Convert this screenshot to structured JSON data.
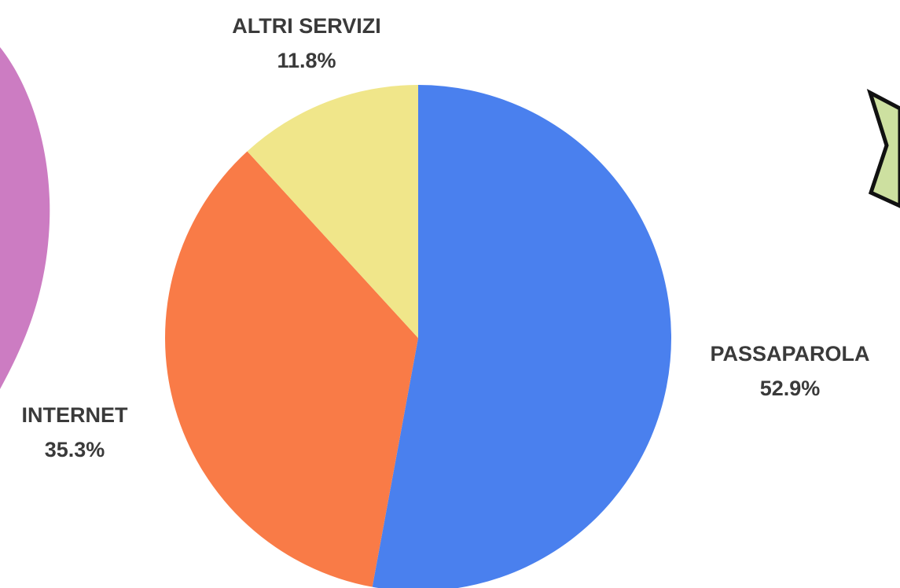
{
  "chart_data": {
    "type": "pie",
    "categories": [
      "PASSAPAROLA",
      "INTERNET",
      "ALTRI SERVIZI"
    ],
    "values": [
      52.9,
      35.3,
      11.8
    ],
    "value_labels": [
      "52.9%",
      "35.3%",
      "11.8%"
    ],
    "colors": [
      "#4a80ee",
      "#f97b47",
      "#f0e68a"
    ]
  }
}
